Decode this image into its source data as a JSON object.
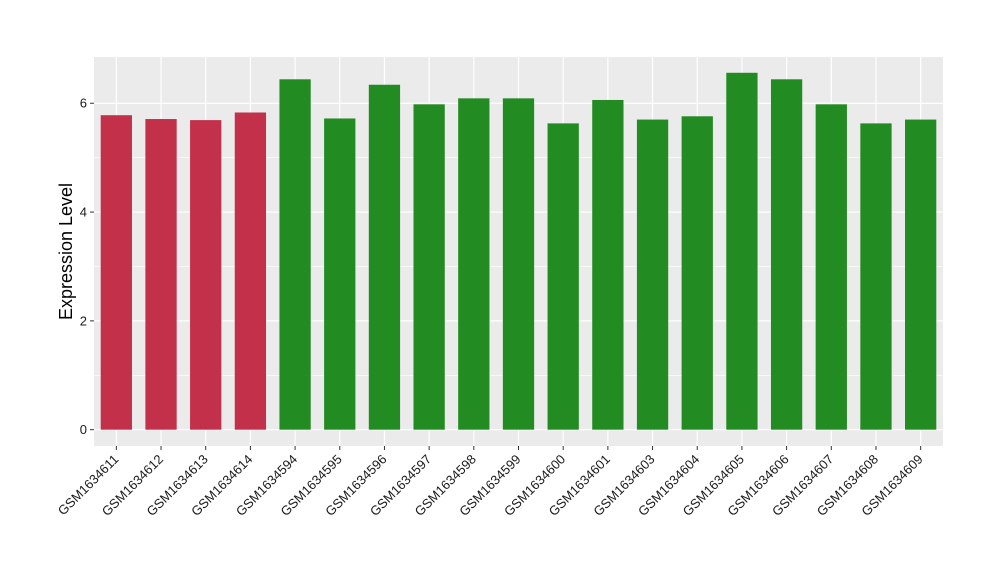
{
  "chart_data": {
    "type": "bar",
    "title": "",
    "xlabel": "",
    "ylabel": "Expression Level",
    "ylim": [
      -0.3,
      6.85
    ],
    "yticks": [
      0,
      2,
      4,
      6
    ],
    "grid": true,
    "legend": "none",
    "categories": [
      "GSM1634611",
      "GSM1634612",
      "GSM1634613",
      "GSM1634614",
      "GSM1634594",
      "GSM1634595",
      "GSM1634596",
      "GSM1634597",
      "GSM1634598",
      "GSM1634599",
      "GSM1634600",
      "GSM1634601",
      "GSM1634603",
      "GSM1634604",
      "GSM1634605",
      "GSM1634606",
      "GSM1634607",
      "GSM1634608",
      "GSM1634609"
    ],
    "values": [
      5.78,
      5.71,
      5.69,
      5.83,
      6.44,
      5.72,
      6.34,
      5.98,
      6.09,
      6.09,
      5.63,
      6.06,
      5.7,
      5.76,
      6.56,
      6.44,
      5.98,
      5.63,
      5.7
    ],
    "colors": [
      "#C2304A",
      "#C2304A",
      "#C2304A",
      "#C2304A",
      "#228B22",
      "#228B22",
      "#228B22",
      "#228B22",
      "#228B22",
      "#228B22",
      "#228B22",
      "#228B22",
      "#228B22",
      "#228B22",
      "#228B22",
      "#228B22",
      "#228B22",
      "#228B22",
      "#228B22"
    ],
    "panel_background": "#EBEBEB",
    "grid_color": "#FFFFFF"
  }
}
